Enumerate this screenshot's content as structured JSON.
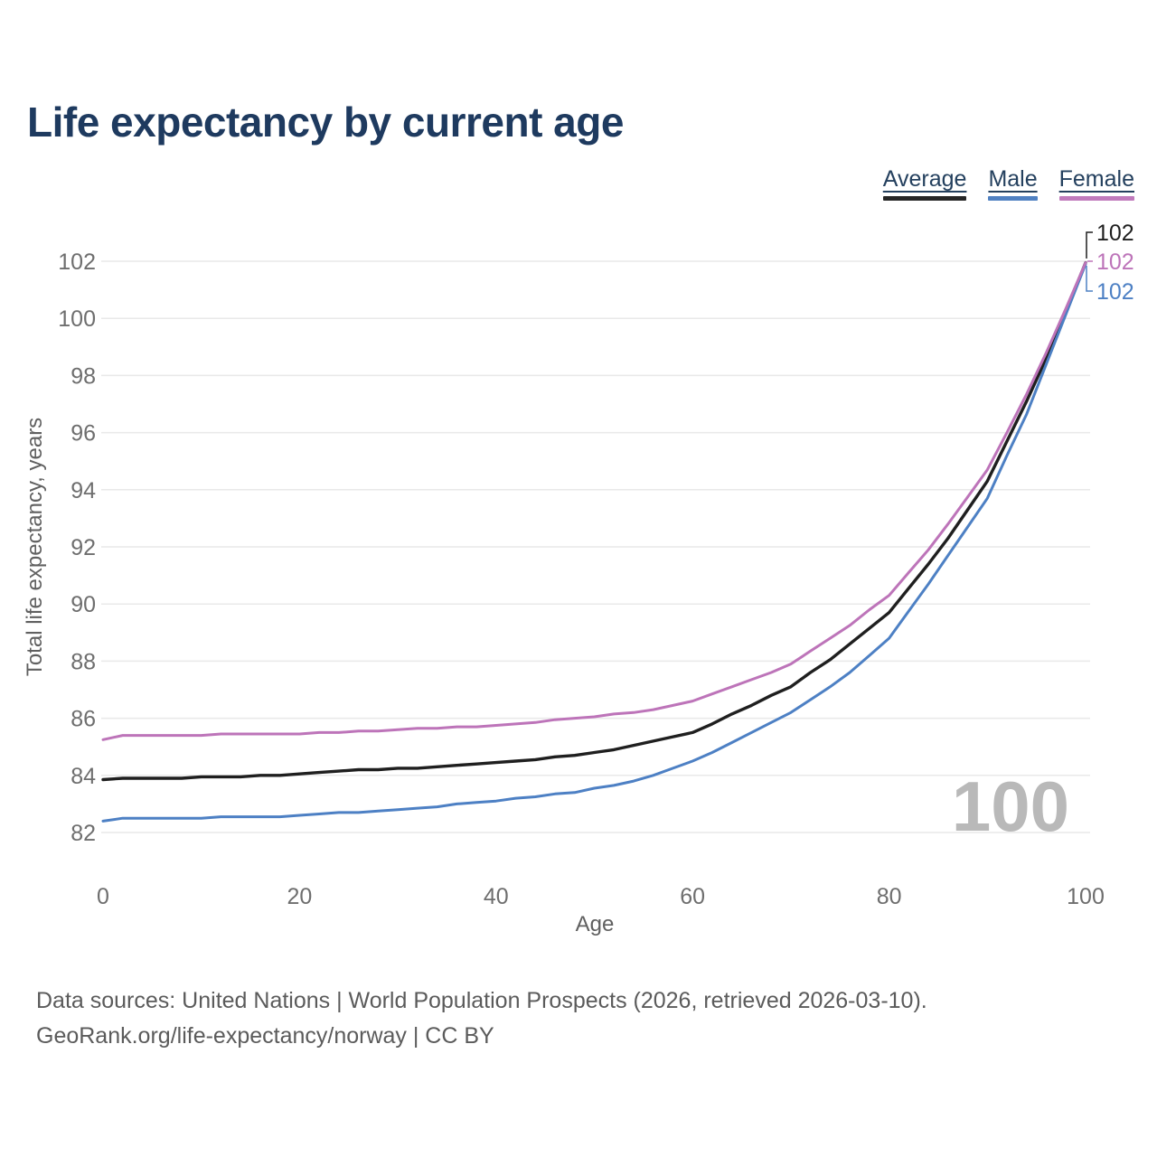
{
  "title": "Life expectancy by current age",
  "legend": [
    {
      "label": "Average",
      "color": "#262626"
    },
    {
      "label": "Male",
      "color": "#5081c2"
    },
    {
      "label": "Female",
      "color": "#c07abc"
    }
  ],
  "chart_data": {
    "type": "line",
    "title": "Life expectancy by current age",
    "xlabel": "Age",
    "ylabel": "Total life expectancy, years",
    "xlim": [
      0,
      100
    ],
    "ylim": [
      82,
      102
    ],
    "grid": "horizontal",
    "legend_position": "top-right",
    "watermark": "100",
    "xticks": [
      0,
      20,
      40,
      60,
      80,
      100
    ],
    "yticks": [
      82,
      84,
      86,
      88,
      90,
      92,
      94,
      96,
      98,
      100,
      102
    ],
    "x": [
      0,
      2,
      4,
      6,
      8,
      10,
      12,
      14,
      16,
      18,
      20,
      22,
      24,
      26,
      28,
      30,
      32,
      34,
      36,
      38,
      40,
      42,
      44,
      46,
      48,
      50,
      52,
      54,
      56,
      58,
      60,
      62,
      64,
      66,
      68,
      70,
      72,
      74,
      76,
      78,
      80,
      82,
      84,
      86,
      88,
      90,
      92,
      94,
      96,
      98,
      100
    ],
    "series": [
      {
        "name": "Average",
        "color": "#1f1f1f",
        "values": [
          83.85,
          83.9,
          83.9,
          83.9,
          83.9,
          83.95,
          83.95,
          83.95,
          84.0,
          84.0,
          84.05,
          84.1,
          84.15,
          84.2,
          84.2,
          84.25,
          84.25,
          84.3,
          84.35,
          84.4,
          84.45,
          84.5,
          84.55,
          84.65,
          84.7,
          84.8,
          84.9,
          85.05,
          85.2,
          85.35,
          85.5,
          85.8,
          86.15,
          86.45,
          86.8,
          87.1,
          87.6,
          88.05,
          88.6,
          89.15,
          89.7,
          90.55,
          91.4,
          92.3,
          93.3,
          94.3,
          95.7,
          97.1,
          98.6,
          100.25,
          101.95
        ]
      },
      {
        "name": "Male",
        "color": "#4d80c4",
        "values": [
          82.4,
          82.5,
          82.5,
          82.5,
          82.5,
          82.5,
          82.55,
          82.55,
          82.55,
          82.55,
          82.6,
          82.65,
          82.7,
          82.7,
          82.75,
          82.8,
          82.85,
          82.9,
          83.0,
          83.05,
          83.1,
          83.2,
          83.25,
          83.35,
          83.4,
          83.55,
          83.65,
          83.8,
          84.0,
          84.25,
          84.5,
          84.8,
          85.15,
          85.5,
          85.85,
          86.2,
          86.65,
          87.1,
          87.6,
          88.2,
          88.8,
          89.75,
          90.7,
          91.7,
          92.7,
          93.7,
          95.2,
          96.65,
          98.4,
          100.15,
          101.9
        ]
      },
      {
        "name": "Female",
        "color": "#bd74b9",
        "values": [
          85.25,
          85.4,
          85.4,
          85.4,
          85.4,
          85.4,
          85.45,
          85.45,
          85.45,
          85.45,
          85.45,
          85.5,
          85.5,
          85.55,
          85.55,
          85.6,
          85.65,
          85.65,
          85.7,
          85.7,
          85.75,
          85.8,
          85.85,
          85.95,
          86.0,
          86.05,
          86.15,
          86.2,
          86.3,
          86.45,
          86.6,
          86.85,
          87.1,
          87.35,
          87.6,
          87.9,
          88.35,
          88.8,
          89.25,
          89.8,
          90.3,
          91.1,
          91.9,
          92.8,
          93.75,
          94.7,
          96.0,
          97.35,
          98.8,
          100.35,
          101.95
        ]
      }
    ],
    "end_labels": [
      {
        "series": "Average",
        "text": "102"
      },
      {
        "series": "Female",
        "text": "102"
      },
      {
        "series": "Male",
        "text": "102"
      }
    ]
  },
  "footer": {
    "line1": "Data sources: United Nations | World Population Prospects (2026, retrieved 2026-03-10).",
    "line2": "GeoRank.org/life-expectancy/norway | CC BY"
  }
}
